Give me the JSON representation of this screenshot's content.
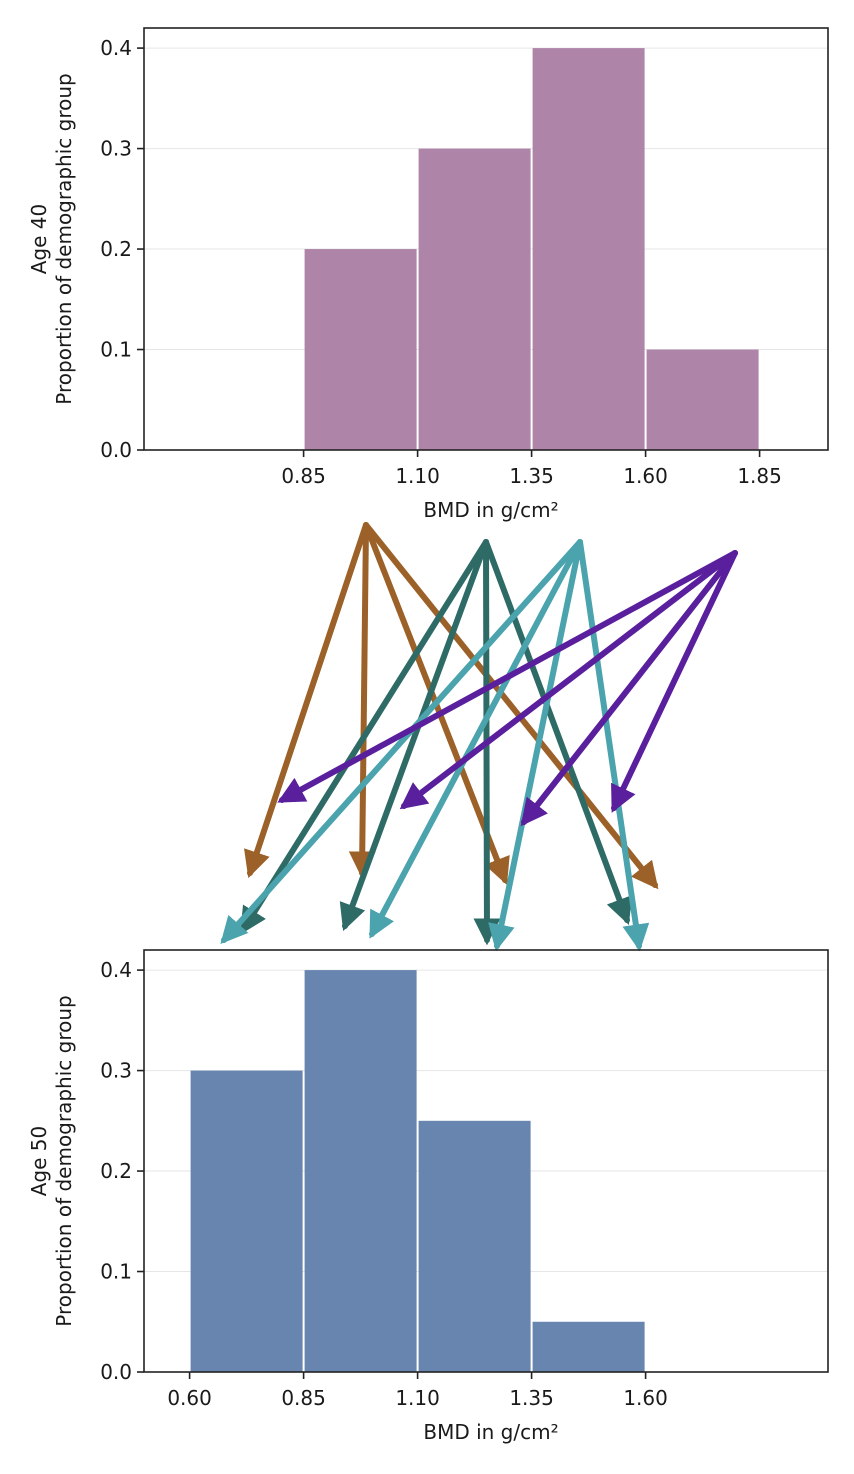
{
  "chart_data": [
    {
      "type": "bar",
      "title": "",
      "xlabel": "BMD in g/cm²",
      "ylabel_line1": "Age 40",
      "ylabel_line2": "Proportion of demographic group",
      "x_ticks": [
        "0.85",
        "1.10",
        "1.35",
        "1.60",
        "1.85"
      ],
      "y_ticks": [
        "0.0",
        "0.1",
        "0.2",
        "0.3",
        "0.4"
      ],
      "xlim": [
        0.5,
        2.0
      ],
      "ylim": [
        0,
        0.42
      ],
      "bin_edges": [
        0.85,
        1.1,
        1.35,
        1.6,
        1.85
      ],
      "values": [
        0.2,
        0.3,
        0.4,
        0.1
      ],
      "color": "#ae85a8"
    },
    {
      "type": "bar",
      "title": "",
      "xlabel": "BMD in g/cm²",
      "ylabel_line1": "Age 50",
      "ylabel_line2": "Proportion of demographic group",
      "x_ticks": [
        "0.60",
        "0.85",
        "1.10",
        "1.35",
        "1.60"
      ],
      "y_ticks": [
        "0.0",
        "0.1",
        "0.2",
        "0.3",
        "0.4"
      ],
      "xlim": [
        0.5,
        2.0
      ],
      "ylim": [
        0,
        0.42
      ],
      "bin_edges": [
        0.6,
        0.85,
        1.1,
        1.35,
        1.6
      ],
      "values": [
        0.3,
        0.4,
        0.25,
        0.05
      ],
      "color": "#6785ae"
    }
  ],
  "transitions": {
    "description_colors": [
      "#9c6128",
      "#2f6b66",
      "#4aa3ad",
      "#5a1f9c"
    ],
    "arrows": [
      {
        "from_bin": 0,
        "to_bin": 0,
        "group": 0
      },
      {
        "from_bin": 0,
        "to_bin": 1,
        "group": 0
      },
      {
        "from_bin": 0,
        "to_bin": 2,
        "group": 0
      },
      {
        "from_bin": 0,
        "to_bin": 3,
        "group": 0
      },
      {
        "from_bin": 1,
        "to_bin": 0,
        "group": 1
      },
      {
        "from_bin": 1,
        "to_bin": 1,
        "group": 1
      },
      {
        "from_bin": 1,
        "to_bin": 2,
        "group": 1
      },
      {
        "from_bin": 1,
        "to_bin": 3,
        "group": 1
      },
      {
        "from_bin": 2,
        "to_bin": 0,
        "group": 2
      },
      {
        "from_bin": 2,
        "to_bin": 1,
        "group": 2
      },
      {
        "from_bin": 2,
        "to_bin": 2,
        "group": 2
      },
      {
        "from_bin": 2,
        "to_bin": 3,
        "group": 2
      },
      {
        "from_bin": 3,
        "to_bin": 0,
        "group": 3
      },
      {
        "from_bin": 3,
        "to_bin": 1,
        "group": 3
      },
      {
        "from_bin": 3,
        "to_bin": 2,
        "group": 3
      },
      {
        "from_bin": 3,
        "to_bin": 3,
        "group": 3
      }
    ]
  }
}
